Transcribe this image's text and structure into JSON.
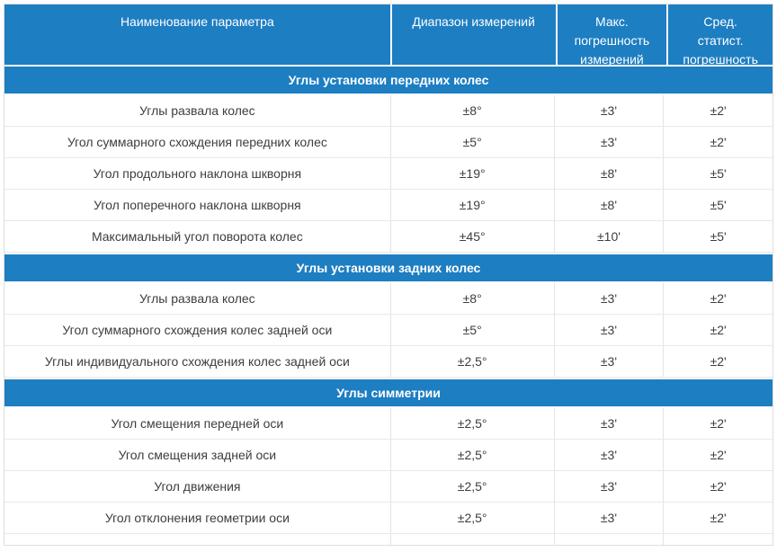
{
  "table": {
    "columns": [
      "Наименование параметра",
      "Диапазон измерений",
      "Макс.\nпогрешность\nизмерений",
      "Сред.\nстатист.\nпогрешность"
    ],
    "sections": [
      {
        "title": "Углы установки передних колес",
        "rows": [
          {
            "name": "Углы развала колес",
            "range": "±8°",
            "max_error": "±3'",
            "stat_error": "±2'"
          },
          {
            "name": "Угол суммарного схождения передних колес",
            "range": "±5°",
            "max_error": "±3'",
            "stat_error": "±2'"
          },
          {
            "name": "Угол продольного наклона шкворня",
            "range": "±19°",
            "max_error": "±8'",
            "stat_error": "±5'"
          },
          {
            "name": "Угол поперечного наклона шкворня",
            "range": "±19°",
            "max_error": "±8'",
            "stat_error": "±5'"
          },
          {
            "name": "Максимальный угол поворота колес",
            "range": "±45°",
            "max_error": "±10'",
            "stat_error": "±5'"
          }
        ]
      },
      {
        "title": "Углы установки задних колес",
        "rows": [
          {
            "name": "Углы развала колес",
            "range": "±8°",
            "max_error": "±3'",
            "stat_error": "±2'"
          },
          {
            "name": "Угол суммарного схождения колес задней оси",
            "range": "±5°",
            "max_error": "±3'",
            "stat_error": "±2'"
          },
          {
            "name": "Углы индивидуального схождения колес задней оси",
            "range": "±2,5°",
            "max_error": "±3'",
            "stat_error": "±2'"
          }
        ]
      },
      {
        "title": "Углы симметрии",
        "rows": [
          {
            "name": "Угол смещения передней оси",
            "range": "±2,5°",
            "max_error": "±3'",
            "stat_error": "±2'"
          },
          {
            "name": "Угол смещения задней оси",
            "range": "±2,5°",
            "max_error": "±3'",
            "stat_error": "±2'"
          },
          {
            "name": "Угол движения",
            "range": "±2,5°",
            "max_error": "±3'",
            "stat_error": "±2'"
          },
          {
            "name": "Угол отклонения геометрии оси",
            "range": "±2,5°",
            "max_error": "±3'",
            "stat_error": "±2'"
          }
        ]
      }
    ],
    "colors": {
      "accent": "#1d7ec2",
      "border": "#e3e3e3",
      "text": "#3d3d3d"
    }
  }
}
